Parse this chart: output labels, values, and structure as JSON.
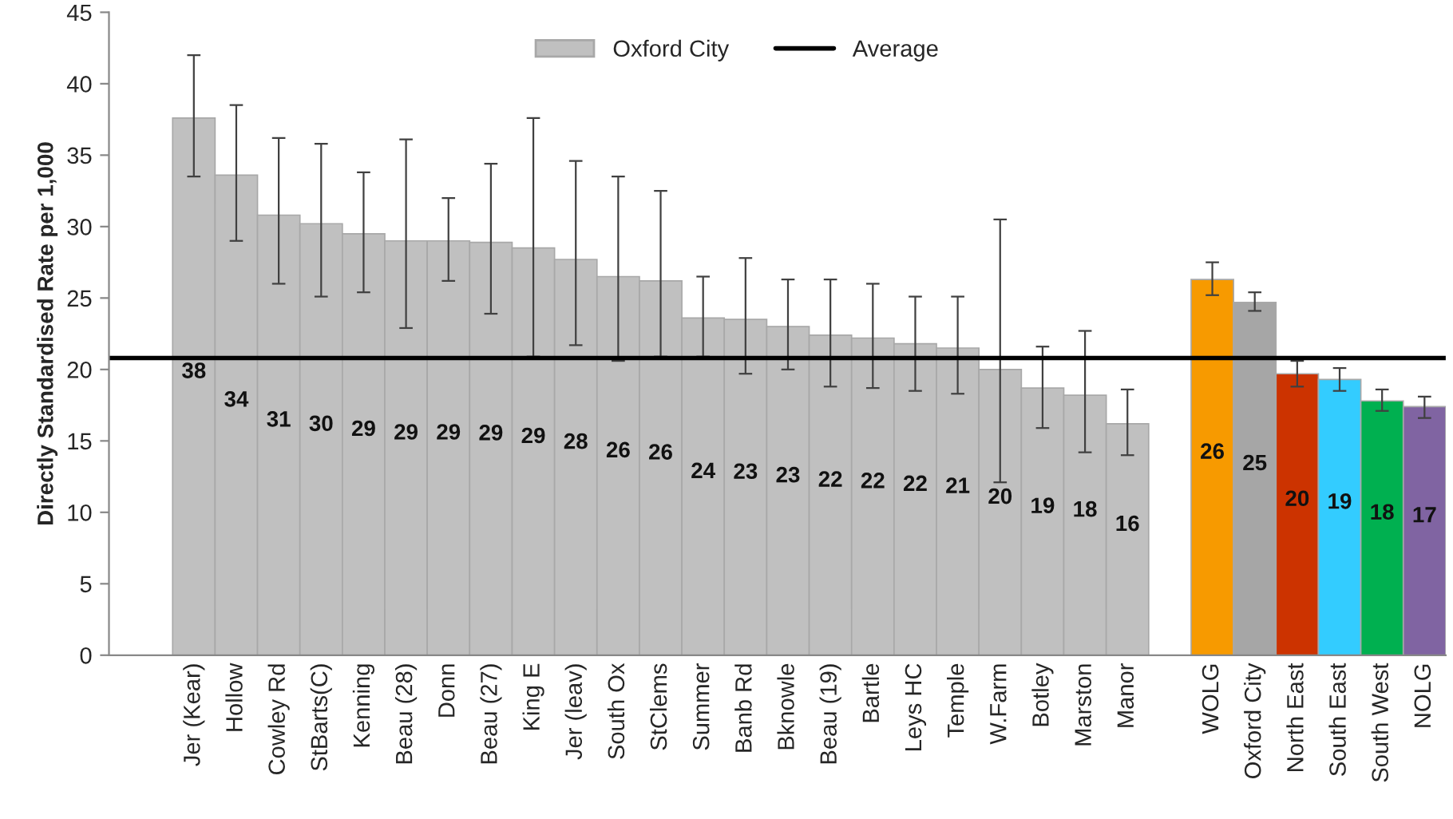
{
  "chart_data": {
    "type": "bar",
    "ylabel": "Directly Standardised Rate per 1,000",
    "categories": [
      "Jer (Kear)",
      "Hollow",
      "Cowley Rd",
      "StBarts(C)",
      "Kenning",
      "Beau (28)",
      "Donn",
      "Beau (27)",
      "King E",
      "Jer (leav)",
      "South Ox",
      "StClems",
      "Summer",
      "Banb Rd",
      "Bknowle",
      "Beau (19)",
      "Bartle",
      "Leys HC",
      "Temple",
      "W.Farm",
      "Botley",
      "Marston",
      "Manor",
      null,
      "WOLG",
      "Oxford City",
      "North East",
      "South East",
      "South West",
      "NOLG"
    ],
    "series": [
      {
        "name": "Oxford City",
        "color": "#c0c0c0",
        "values": [
          37.6,
          33.6,
          30.8,
          30.2,
          29.5,
          29.0,
          29.0,
          28.9,
          28.5,
          27.7,
          26.5,
          26.2,
          23.6,
          23.5,
          23.0,
          22.4,
          22.2,
          21.8,
          21.5,
          20.0,
          18.7,
          18.2,
          16.2,
          null,
          26.3,
          24.7,
          19.7,
          19.3,
          17.8,
          17.4
        ],
        "colors": [
          "#c0c0c0",
          "#c0c0c0",
          "#c0c0c0",
          "#c0c0c0",
          "#c0c0c0",
          "#c0c0c0",
          "#c0c0c0",
          "#c0c0c0",
          "#c0c0c0",
          "#c0c0c0",
          "#c0c0c0",
          "#c0c0c0",
          "#c0c0c0",
          "#c0c0c0",
          "#c0c0c0",
          "#c0c0c0",
          "#c0c0c0",
          "#c0c0c0",
          "#c0c0c0",
          "#c0c0c0",
          "#c0c0c0",
          "#c0c0c0",
          "#c0c0c0",
          null,
          "#f79a00",
          "#a6a6a6",
          "#cc3300",
          "#33ccff",
          "#00b050",
          "#8064a2"
        ],
        "errors": [
          [
            33.5,
            42
          ],
          [
            29,
            38.5
          ],
          [
            26,
            36.2
          ],
          [
            25.1,
            35.8
          ],
          [
            25.4,
            33.8
          ],
          [
            22.9,
            36.1
          ],
          [
            26.2,
            32
          ],
          [
            23.9,
            34.4
          ],
          [
            20.9,
            37.6
          ],
          [
            21.7,
            34.6
          ],
          [
            20.6,
            33.5
          ],
          [
            20.9,
            32.5
          ],
          [
            20.9,
            26.5
          ],
          [
            19.7,
            27.8
          ],
          [
            20.0,
            26.3
          ],
          [
            18.8,
            26.3
          ],
          [
            18.7,
            26.0
          ],
          [
            18.5,
            25.1
          ],
          [
            18.3,
            25.1
          ],
          [
            12.1,
            30.5
          ],
          [
            15.9,
            21.6
          ],
          [
            14.2,
            22.7
          ],
          [
            14.0,
            18.6
          ],
          null,
          [
            25.2,
            27.5
          ],
          [
            24.1,
            25.4
          ],
          [
            18.8,
            20.6
          ],
          [
            18.5,
            20.1
          ],
          [
            17.1,
            18.6
          ],
          [
            16.6,
            18.1
          ]
        ],
        "value_labels": [
          "38",
          "34",
          "31",
          "30",
          "29",
          "29",
          "29",
          "29",
          "29",
          "28",
          "26",
          "26",
          "24",
          "23",
          "23",
          "22",
          "22",
          "22",
          "21",
          "20",
          "19",
          "18",
          "16",
          null,
          "26",
          "25",
          "20",
          "19",
          "18",
          "17"
        ]
      }
    ],
    "ref_lines": [
      {
        "axis": "y",
        "value": 20.8,
        "label": "Average",
        "color": "#000000"
      }
    ],
    "ylim": [
      0,
      45
    ],
    "yticks": [
      0,
      5,
      10,
      15,
      20,
      25,
      30,
      35,
      40,
      45
    ],
    "grid": false,
    "legend": "top"
  }
}
